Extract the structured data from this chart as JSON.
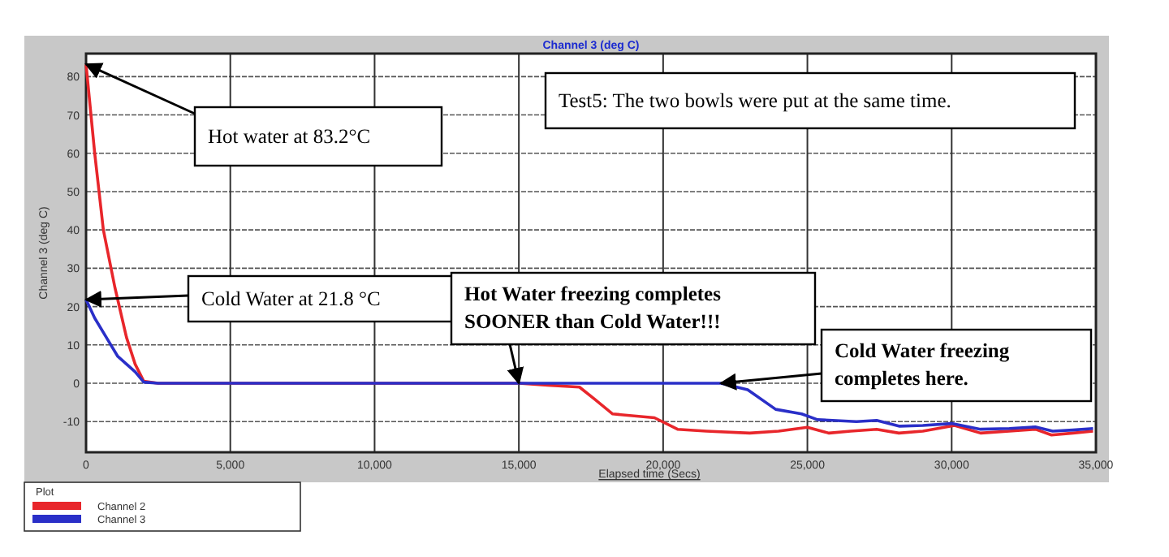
{
  "chart_data": {
    "type": "line",
    "title": "Channel 3 (deg C)",
    "xlabel": "Elapsed time (Secs)",
    "ylabel": "Channel 3 (deg C)",
    "xlim": [
      0,
      35000
    ],
    "xticks": [
      {
        "value": 0,
        "label": "0"
      },
      {
        "value": 5000,
        "label": "5,000"
      },
      {
        "value": 10000,
        "label": "10,000"
      },
      {
        "value": 15000,
        "label": "15,000"
      },
      {
        "value": 20000,
        "label": "20,000"
      },
      {
        "value": 25000,
        "label": "25,000"
      },
      {
        "value": 30000,
        "label": "30,000"
      },
      {
        "value": 35000,
        "label": "35,000"
      }
    ],
    "ylim": [
      -18,
      86
    ],
    "yticks": [
      -10,
      0,
      10,
      20,
      30,
      40,
      50,
      60,
      70,
      80
    ],
    "grid": true,
    "legend": "bottom left",
    "legend_title": "Plot",
    "line_style": "solid",
    "marker": "none",
    "series": [
      {
        "name": "Channel 2",
        "color": "#e8262b",
        "x": [
          0,
          300,
          600,
          1000,
          1400,
          1700,
          2000,
          2500,
          15000,
          16000,
          17100,
          17600,
          18250,
          19700,
          20500,
          21500,
          23000,
          24000,
          25000,
          25750,
          26500,
          27400,
          28170,
          29000,
          30100,
          31000,
          32000,
          32900,
          33460,
          34200,
          34900
        ],
        "values": [
          83.2,
          60,
          40,
          25,
          12,
          5,
          0.5,
          0,
          0,
          -0.5,
          -1,
          -4,
          -8,
          -9,
          -12,
          -12.5,
          -13,
          -12.5,
          -11.5,
          -13,
          -12.5,
          -12,
          -13,
          -12.5,
          -11,
          -13,
          -12.5,
          -12,
          -13.5,
          -13,
          -12.5
        ]
      },
      {
        "name": "Channel 3",
        "color": "#2a2fc8",
        "x": [
          0,
          300,
          700,
          1100,
          1400,
          1700,
          2000,
          2500,
          22000,
          22930,
          23900,
          24800,
          25350,
          26700,
          27400,
          28200,
          29000,
          30000,
          31000,
          32000,
          32900,
          33500,
          34200,
          34900
        ],
        "values": [
          21.8,
          17,
          12,
          7,
          5,
          3,
          0.3,
          0,
          0,
          -1.7,
          -6.8,
          -8,
          -9.5,
          -10,
          -9.7,
          -11.2,
          -11,
          -10.5,
          -12,
          -11.8,
          -11.4,
          -12.5,
          -12.2,
          -11.8
        ]
      }
    ],
    "annotations": [
      {
        "text": "Hot water at 83.2°C",
        "x": 0,
        "y": 83.2
      },
      "Test5: The two bowls were put at the same time.",
      {
        "text": "Cold Water at 21.8 °C",
        "x": 0,
        "y": 21.8
      },
      {
        "text": "Hot Water freezing completes SOONER than Cold Water!!!",
        "x": 15000,
        "y": 0
      },
      {
        "text": "Cold Water freezing completes here.",
        "x": 22000,
        "y": 0
      }
    ]
  }
}
